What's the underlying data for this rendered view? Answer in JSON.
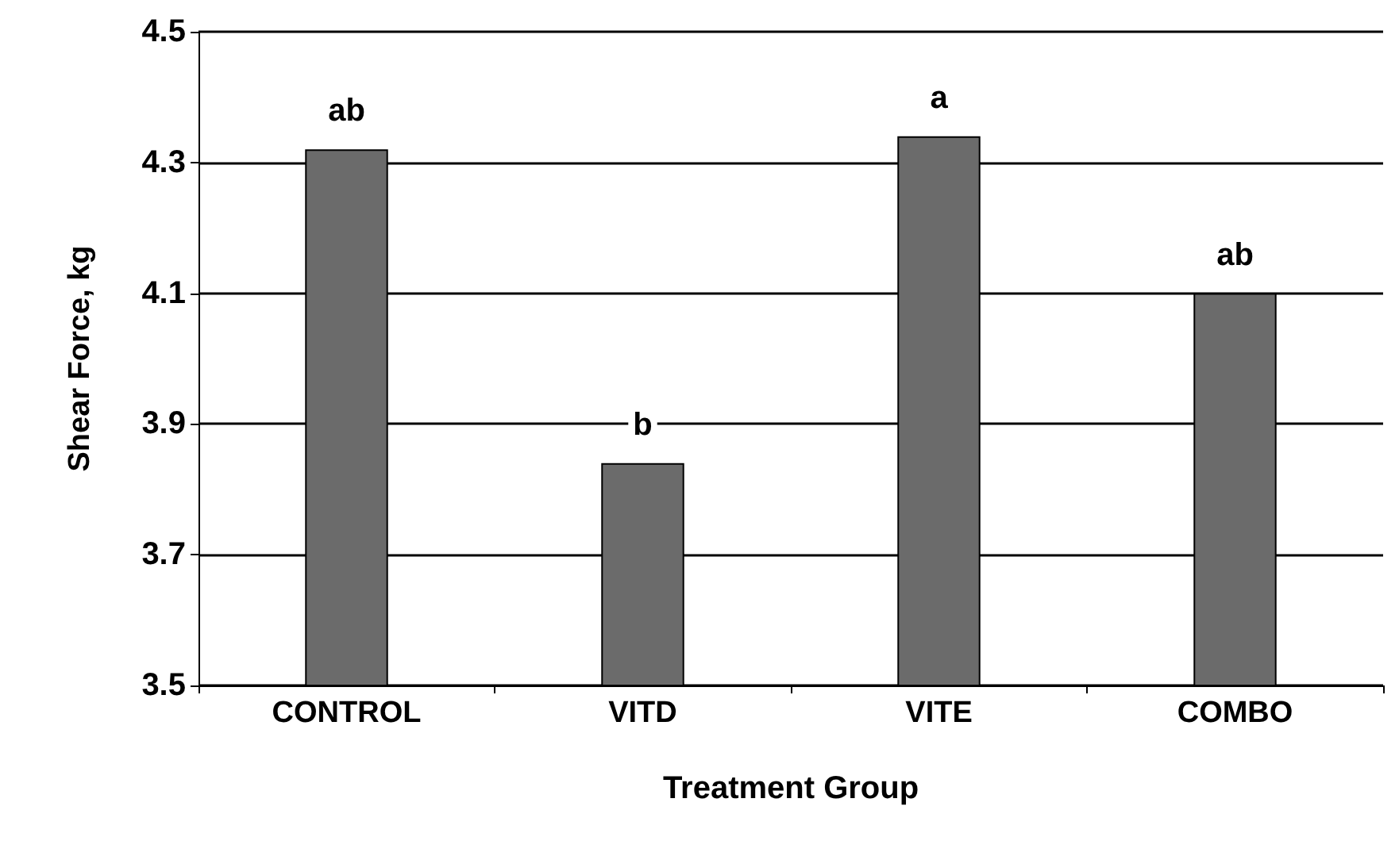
{
  "chart_data": {
    "type": "bar",
    "xlabel": "Treatment Group",
    "ylabel": "Shear Force, kg",
    "categories": [
      "CONTROL",
      "VITD",
      "VITE",
      "COMBO"
    ],
    "values": [
      4.32,
      3.84,
      4.34,
      4.1
    ],
    "value_labels": [
      "ab",
      "b",
      "a",
      "ab"
    ],
    "color": "#6b6b6b",
    "ylim": [
      3.5,
      4.5
    ],
    "yticks": [
      3.5,
      3.7,
      3.9,
      4.1,
      4.3,
      4.5
    ],
    "grid": "y"
  }
}
